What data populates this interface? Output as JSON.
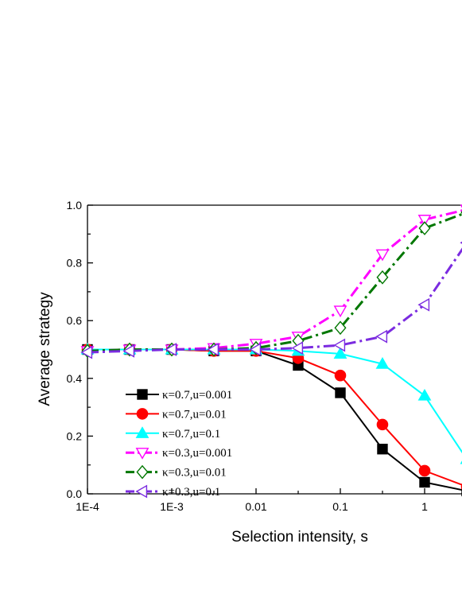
{
  "chart_data": {
    "type": "line",
    "title": "",
    "xlabel": "Selection intensity, s",
    "ylabel": "Average strategy",
    "x_scale": "log",
    "xlim": [
      0.0001,
      3.5
    ],
    "ylim": [
      0.0,
      1.0
    ],
    "grid": false,
    "legend_position": "lower-left",
    "x_ticks": [
      {
        "value": 0.0001,
        "label": "1E-4"
      },
      {
        "value": 0.001,
        "label": "1E-3"
      },
      {
        "value": 0.01,
        "label": "0.01"
      },
      {
        "value": 0.1,
        "label": "0.1"
      },
      {
        "value": 1,
        "label": "1"
      }
    ],
    "y_ticks": [
      {
        "value": 0.0,
        "label": "0.0"
      },
      {
        "value": 0.2,
        "label": "0.2"
      },
      {
        "value": 0.4,
        "label": "0.4"
      },
      {
        "value": 0.6,
        "label": "0.6"
      },
      {
        "value": 0.8,
        "label": "0.8"
      },
      {
        "value": 1.0,
        "label": "1.0"
      }
    ],
    "x": [
      0.0001,
      0.000316,
      0.001,
      0.00316,
      0.01,
      0.0316,
      0.1,
      0.316,
      1,
      3.16
    ],
    "series": [
      {
        "name": "κ=0.7,u=0.001",
        "color": "#000000",
        "marker": "square",
        "filled": true,
        "dash": "solid",
        "values": [
          0.5,
          0.5,
          0.5,
          0.495,
          0.495,
          0.445,
          0.35,
          0.155,
          0.04,
          0.01
        ]
      },
      {
        "name": "κ=0.7,u=0.01",
        "color": "#ff0000",
        "marker": "circle",
        "filled": true,
        "dash": "solid",
        "values": [
          0.5,
          0.5,
          0.5,
          0.495,
          0.495,
          0.47,
          0.41,
          0.24,
          0.08,
          0.025
        ]
      },
      {
        "name": "κ=0.7,u=0.1",
        "color": "#00ffff",
        "marker": "triangle-up",
        "filled": true,
        "dash": "solid",
        "values": [
          0.5,
          0.5,
          0.5,
          0.5,
          0.5,
          0.495,
          0.485,
          0.45,
          0.34,
          0.12
        ]
      },
      {
        "name": "κ=0.3,u=0.001",
        "color": "#ff00ff",
        "marker": "triangle-down",
        "filled": false,
        "dash": "dashdot",
        "values": [
          0.495,
          0.5,
          0.5,
          0.505,
          0.52,
          0.545,
          0.635,
          0.83,
          0.95,
          0.985
        ]
      },
      {
        "name": "κ=0.3,u=0.01",
        "color": "#007700",
        "marker": "diamond",
        "filled": false,
        "dash": "dashdot",
        "values": [
          0.495,
          0.5,
          0.5,
          0.5,
          0.505,
          0.53,
          0.575,
          0.75,
          0.92,
          0.975
        ]
      },
      {
        "name": "κ=0.3,u=0.1",
        "color": "#7b2be0",
        "marker": "triangle-left",
        "filled": false,
        "dash": "dashdot",
        "values": [
          0.49,
          0.495,
          0.5,
          0.5,
          0.5,
          0.505,
          0.515,
          0.545,
          0.655,
          0.87
        ]
      }
    ]
  }
}
